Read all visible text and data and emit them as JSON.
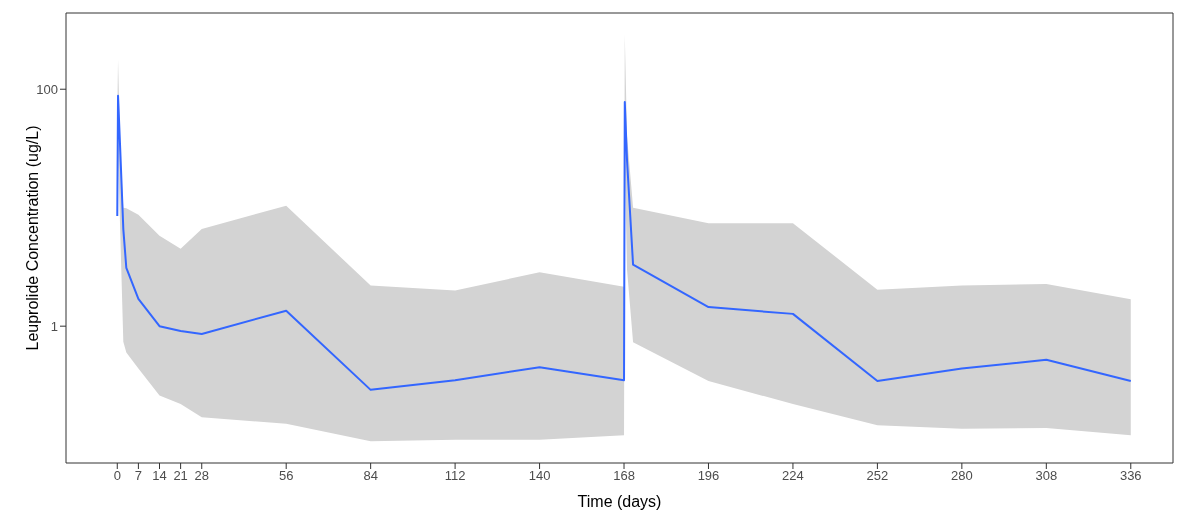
{
  "chart_data": {
    "type": "line",
    "xlabel": "Time (days)",
    "ylabel": "Leuprolide Concentration (ug/L)",
    "log": "y",
    "grid": false,
    "legend": false,
    "marker": "none",
    "line_style": "solid",
    "xlim": [
      -17,
      350
    ],
    "xticks": [
      0,
      7,
      14,
      21,
      28,
      56,
      84,
      112,
      140,
      168,
      196,
      224,
      252,
      280,
      308,
      336
    ],
    "ylim": [
      0.07,
      440
    ],
    "yticks": [
      1,
      100
    ],
    "series": [
      {
        "color": "#3366ff",
        "x": [
          0,
          0.25,
          1,
          2,
          3,
          7,
          14,
          21,
          28,
          56,
          84,
          112,
          140,
          168,
          168.25,
          169,
          171,
          196,
          224,
          252,
          280,
          308,
          336
        ],
        "values": [
          8.5,
          88,
          30,
          6.6,
          3.1,
          1.7,
          1.0,
          0.91,
          0.86,
          1.35,
          0.29,
          0.35,
          0.45,
          0.35,
          78,
          25,
          3.3,
          1.45,
          1.27,
          0.345,
          0.44,
          0.52,
          0.345
        ],
        "lower": [
          8,
          30,
          6,
          0.74,
          0.6,
          0.44,
          0.26,
          0.22,
          0.17,
          0.15,
          0.107,
          0.11,
          0.11,
          0.12,
          25,
          3,
          0.73,
          0.345,
          0.22,
          0.146,
          0.136,
          0.138,
          0.12
        ],
        "upper": [
          60,
          178,
          30,
          10,
          9.9,
          8.7,
          5.8,
          4.5,
          6.6,
          10.4,
          2.2,
          2.0,
          2.85,
          2.15,
          290,
          40,
          10,
          7.4,
          7.4,
          2.03,
          2.2,
          2.27,
          1.69
        ]
      }
    ]
  }
}
